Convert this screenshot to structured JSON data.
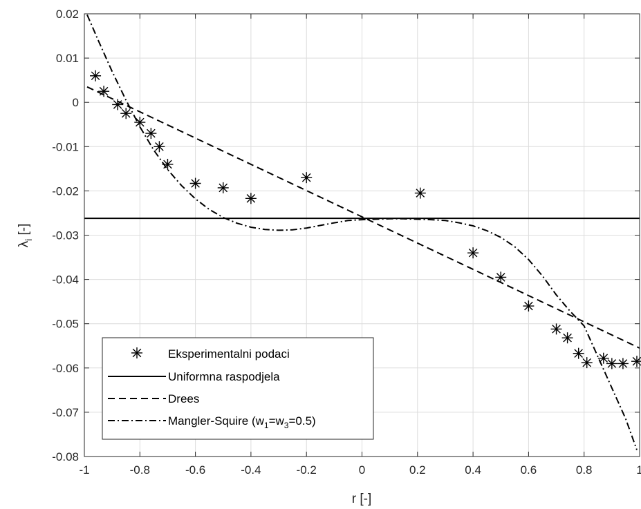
{
  "chart_data": {
    "type": "line",
    "title": "",
    "xlabel": "r [-]",
    "ylabel_main": "λ",
    "ylabel_sub": "i",
    "ylabel_suffix": " [-]",
    "xlim": [
      -1,
      1
    ],
    "ylim": [
      -0.08,
      0.02
    ],
    "grid": true,
    "legend_position": "bottom-left",
    "x_ticks": [
      -1,
      -0.8,
      -0.6,
      -0.4,
      -0.2,
      0,
      0.2,
      0.4,
      0.6,
      0.8,
      1
    ],
    "x_tick_labels": [
      "-1",
      "-0.8",
      "-0.6",
      "-0.4",
      "-0.2",
      "0",
      "0.2",
      "0.4",
      "0.6",
      "0.8",
      "1"
    ],
    "y_ticks": [
      0.02,
      0.01,
      0,
      -0.01,
      -0.02,
      -0.03,
      -0.04,
      -0.05,
      -0.06,
      -0.07,
      -0.08
    ],
    "y_tick_labels": [
      "0.02",
      "0.01",
      "0",
      "-0.01",
      "-0.02",
      "-0.03",
      "-0.04",
      "-0.05",
      "-0.06",
      "-0.07",
      "-0.08"
    ],
    "series": [
      {
        "name": "Eksperimentalni podaci",
        "style": "markers",
        "color": "#000000",
        "x": [
          -0.96,
          -0.93,
          -0.88,
          -0.85,
          -0.8,
          -0.76,
          -0.73,
          -0.7,
          -0.6,
          -0.5,
          -0.4,
          -0.2,
          0.21,
          0.4,
          0.5,
          0.6,
          0.7,
          0.74,
          0.78,
          0.81,
          0.87,
          0.9,
          0.94,
          0.99
        ],
        "y": [
          0.006,
          0.0025,
          -0.0005,
          -0.0025,
          -0.0045,
          -0.007,
          -0.01,
          -0.014,
          -0.0183,
          -0.0193,
          -0.0217,
          -0.017,
          -0.0205,
          -0.034,
          -0.0395,
          -0.046,
          -0.0512,
          -0.0532,
          -0.0567,
          -0.0588,
          -0.0578,
          -0.059,
          -0.059,
          -0.0585
        ]
      },
      {
        "name": "Uniformna raspodjela",
        "style": "solid",
        "color": "#000000",
        "x": [
          -1,
          1
        ],
        "y": [
          -0.0262,
          -0.0262
        ]
      },
      {
        "name": "Drees",
        "style": "dashed",
        "color": "#000000",
        "x": [
          -0.99,
          1
        ],
        "y": [
          0.0035,
          -0.0555
        ]
      },
      {
        "name_prefix": "Mangler-Squire (w",
        "name_sub1": "1",
        "name_mid": "=w",
        "name_sub2": "3",
        "name_suffix": "=0.5)",
        "style": "dashdot",
        "color": "#000000",
        "x": [
          -0.99,
          -0.95,
          -0.9,
          -0.85,
          -0.8,
          -0.75,
          -0.7,
          -0.65,
          -0.6,
          -0.55,
          -0.5,
          -0.45,
          -0.4,
          -0.35,
          -0.3,
          -0.25,
          -0.2,
          -0.15,
          -0.1,
          -0.05,
          0,
          0.05,
          0.1,
          0.15,
          0.2,
          0.25,
          0.3,
          0.35,
          0.4,
          0.45,
          0.5,
          0.55,
          0.6,
          0.65,
          0.7,
          0.75,
          0.8,
          0.85,
          0.9,
          0.95,
          0.99
        ],
        "y": [
          0.0198,
          0.014,
          0.007,
          0.0005,
          -0.0055,
          -0.0108,
          -0.0152,
          -0.0188,
          -0.0218,
          -0.0242,
          -0.026,
          -0.0273,
          -0.0282,
          -0.0287,
          -0.0289,
          -0.0288,
          -0.0284,
          -0.0278,
          -0.0272,
          -0.0267,
          -0.0265,
          -0.0264,
          -0.0263,
          -0.0263,
          -0.0264,
          -0.0265,
          -0.0267,
          -0.0272,
          -0.0279,
          -0.029,
          -0.0305,
          -0.0326,
          -0.0355,
          -0.0392,
          -0.0435,
          -0.0472,
          -0.0505,
          -0.0575,
          -0.0645,
          -0.0715,
          -0.0785
        ]
      }
    ]
  }
}
